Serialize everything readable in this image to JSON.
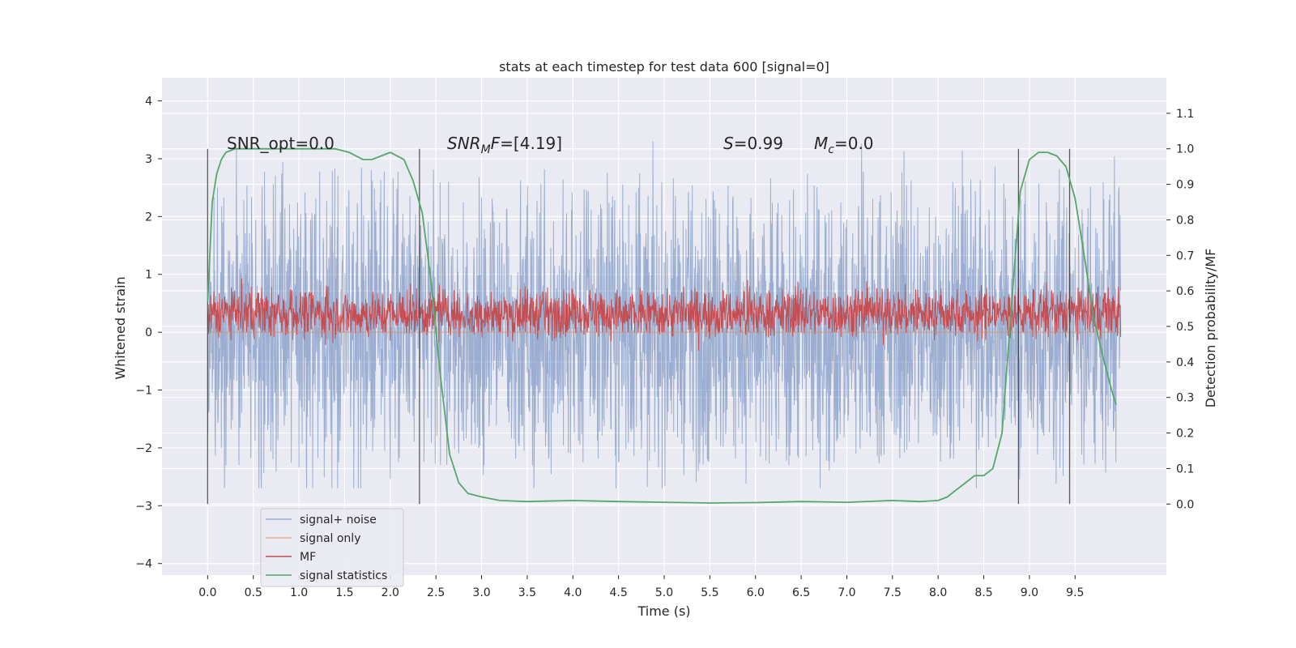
{
  "chart_data": {
    "type": "line",
    "title": "stats at each timestep for test data 600 [signal=0]",
    "xlabel": "Time (s)",
    "ylabel": "Whitened strain",
    "ylabel_right": "Detection probability/MF",
    "xlim": [
      -0.5,
      10.5
    ],
    "ylim": [
      -4.2,
      4.4
    ],
    "ylim_right": [
      -0.2,
      1.2
    ],
    "x_ticks": [
      "0.0",
      "0.5",
      "1.0",
      "1.5",
      "2.0",
      "2.5",
      "3.0",
      "3.5",
      "4.0",
      "4.5",
      "5.0",
      "5.5",
      "6.0",
      "6.5",
      "7.0",
      "7.5",
      "8.0",
      "8.5",
      "9.0",
      "9.5"
    ],
    "y_ticks": [
      "4",
      "3",
      "2",
      "1",
      "0",
      "−1",
      "−2",
      "−3",
      "−4"
    ],
    "y_ticks_right": [
      "1.1",
      "1.0",
      "0.9",
      "0.8",
      "0.7",
      "0.6",
      "0.5",
      "0.4",
      "0.3",
      "0.2",
      "0.1",
      "0.0"
    ],
    "grid": true,
    "legend_position": "lower-left",
    "annotations": {
      "snr_opt": "SNR_opt=0.0",
      "snr_mf_a": "SNR",
      "snr_mf_sub": "M",
      "snr_mf_b": "F",
      "snr_mf_val": "=[4.19]",
      "s_var": "S",
      "s_val": "=0.99",
      "mc_var": "M",
      "mc_sub": "c",
      "mc_val": "=0.0"
    },
    "vertical_lines_x": [
      0.0,
      2.32,
      8.88,
      9.44
    ],
    "series": [
      {
        "name": "signal+ noise",
        "color": "#4c72b0",
        "opacity": 0.5,
        "kind": "noise",
        "x_range": [
          0,
          10
        ],
        "band_low": -2.1,
        "band_high": 2.6,
        "dense_low": -1.2,
        "dense_high": 1.3
      },
      {
        "name": "signal only",
        "color": "#dd8452",
        "opacity": 0.6,
        "kind": "flat",
        "x": [
          0,
          10
        ],
        "y": [
          0,
          0
        ]
      },
      {
        "name": "MF",
        "color": "#c44e52",
        "kind": "noise",
        "x_range": [
          0,
          10
        ],
        "band_low": 0.0,
        "band_high": 0.75,
        "dense_low": 0.1,
        "dense_high": 0.55
      },
      {
        "name": "signal statistics",
        "color": "#55a868",
        "axis": "right",
        "kind": "line",
        "x": [
          0.0,
          0.05,
          0.1,
          0.15,
          0.2,
          0.3,
          0.5,
          1.0,
          1.4,
          1.55,
          1.7,
          1.8,
          2.0,
          2.15,
          2.25,
          2.35,
          2.45,
          2.55,
          2.65,
          2.75,
          2.85,
          3.0,
          3.2,
          3.5,
          4.0,
          4.5,
          5.0,
          5.5,
          6.0,
          6.5,
          7.0,
          7.5,
          7.8,
          8.0,
          8.1,
          8.2,
          8.3,
          8.4,
          8.5,
          8.6,
          8.7,
          8.8,
          8.9,
          9.0,
          9.1,
          9.2,
          9.3,
          9.4,
          9.5,
          9.6,
          9.7,
          9.8,
          9.9,
          9.95
        ],
        "y": [
          0.57,
          0.85,
          0.93,
          0.97,
          0.99,
          1.0,
          1.0,
          1.0,
          1.0,
          0.99,
          0.97,
          0.97,
          0.99,
          0.97,
          0.91,
          0.82,
          0.62,
          0.36,
          0.14,
          0.06,
          0.03,
          0.02,
          0.01,
          0.007,
          0.01,
          0.007,
          0.005,
          0.003,
          0.004,
          0.007,
          0.005,
          0.01,
          0.007,
          0.01,
          0.02,
          0.04,
          0.06,
          0.08,
          0.08,
          0.1,
          0.2,
          0.55,
          0.88,
          0.97,
          0.99,
          0.99,
          0.98,
          0.95,
          0.86,
          0.7,
          0.53,
          0.42,
          0.32,
          0.28
        ]
      }
    ]
  }
}
